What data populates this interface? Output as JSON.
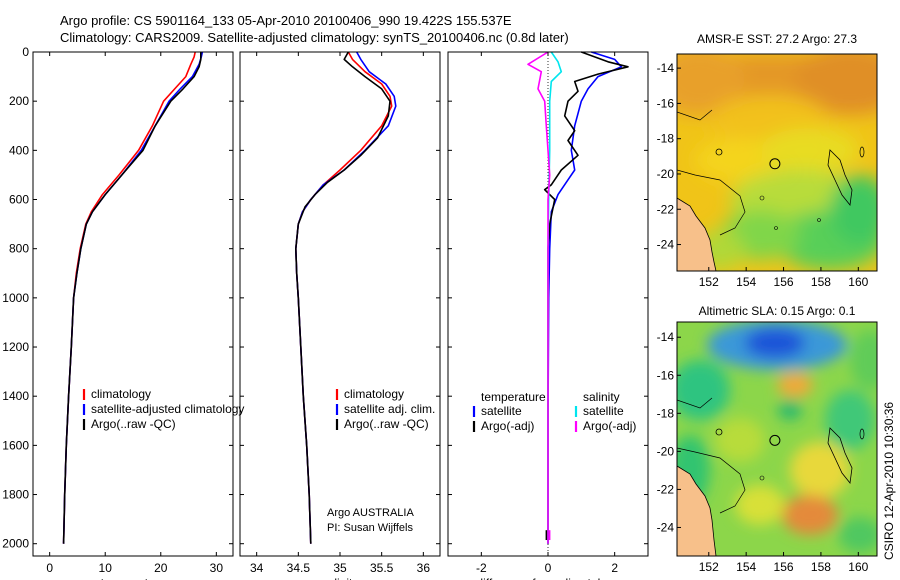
{
  "titles": {
    "line1": "Argo profile: CS 5901164_133 05-Apr-2010 20100406_990 19.422S 155.537E",
    "line2": "Climatology: CARS2009. Satellite-adjusted climatology: synTS_20100406.nc (0.8d later)"
  },
  "colors": {
    "climatology": "#ff0000",
    "satellite": "#0000ff",
    "argo": "#000000",
    "sal_satellite": "#00e5ee",
    "sal_argo": "#ff00ff",
    "land": "#f7c08a"
  },
  "chart_data": [
    {
      "type": "line",
      "id": "temperature",
      "xlabel": "temperature",
      "ylabel": "",
      "xlim": [
        -3,
        33
      ],
      "ylim": [
        2050,
        0
      ],
      "xticks": [
        0,
        10,
        20,
        30
      ],
      "yticks": [
        0,
        200,
        400,
        600,
        800,
        1000,
        1200,
        1400,
        1600,
        1800,
        2000
      ],
      "series": [
        {
          "name": "climatology",
          "color": "#ff0000",
          "points": [
            [
              26.2,
              0
            ],
            [
              26,
              20
            ],
            [
              25.4,
              50
            ],
            [
              24.5,
              100
            ],
            [
              22.5,
              150
            ],
            [
              20.5,
              200
            ],
            [
              18.5,
              300
            ],
            [
              16,
              400
            ],
            [
              12.5,
              500
            ],
            [
              9.5,
              580
            ],
            [
              7.5,
              650
            ],
            [
              6.5,
              700
            ],
            [
              5.5,
              800
            ],
            [
              4.8,
              900
            ],
            [
              4.3,
              1000
            ],
            [
              3.9,
              1200
            ],
            [
              3.4,
              1400
            ],
            [
              3,
              1600
            ],
            [
              2.7,
              1800
            ],
            [
              2.5,
              2000
            ]
          ]
        },
        {
          "name": "satellite-adjusted climatology",
          "color": "#0000ff",
          "points": [
            [
              27.5,
              0
            ],
            [
              27.3,
              20
            ],
            [
              26.9,
              50
            ],
            [
              25.7,
              100
            ],
            [
              23.5,
              150
            ],
            [
              21.5,
              200
            ],
            [
              19,
              300
            ],
            [
              16.5,
              400
            ],
            [
              13,
              500
            ],
            [
              10,
              580
            ],
            [
              7.7,
              650
            ],
            [
              6.6,
              700
            ],
            [
              5.6,
              800
            ],
            [
              4.9,
              900
            ],
            [
              4.3,
              1000
            ],
            [
              3.9,
              1200
            ],
            [
              3.4,
              1400
            ],
            [
              3,
              1600
            ],
            [
              2.7,
              1800
            ],
            [
              2.5,
              2000
            ]
          ]
        },
        {
          "name": "Argo(..raw -QC)",
          "color": "#000000",
          "points": [
            [
              27.2,
              0
            ],
            [
              27.2,
              30
            ],
            [
              26.9,
              60
            ],
            [
              26,
              100
            ],
            [
              24,
              150
            ],
            [
              21.8,
              200
            ],
            [
              19,
              300
            ],
            [
              16.8,
              400
            ],
            [
              13,
              500
            ],
            [
              10,
              580
            ],
            [
              7.7,
              650
            ],
            [
              6.6,
              700
            ],
            [
              5.6,
              800
            ],
            [
              4.9,
              900
            ],
            [
              4.3,
              1000
            ],
            [
              3.9,
              1200
            ],
            [
              3.4,
              1400
            ],
            [
              3,
              1600
            ],
            [
              2.7,
              1800
            ],
            [
              2.5,
              2000
            ]
          ]
        }
      ],
      "legend": [
        "climatology",
        "satellite-adjusted climatology",
        "Argo(..raw -QC)"
      ]
    },
    {
      "type": "line",
      "id": "salinity",
      "xlabel": "salinity",
      "xlim": [
        33.8,
        36.2
      ],
      "ylim": [
        2050,
        0
      ],
      "xticks": [
        34,
        34.5,
        35,
        35.5,
        36
      ],
      "yticks": [
        0,
        200,
        400,
        600,
        800,
        1000,
        1200,
        1400,
        1600,
        1800,
        2000
      ],
      "series": [
        {
          "name": "climatology",
          "color": "#ff0000",
          "points": [
            [
              35.1,
              0
            ],
            [
              35.15,
              30
            ],
            [
              35.3,
              80
            ],
            [
              35.5,
              130
            ],
            [
              35.6,
              180
            ],
            [
              35.62,
              220
            ],
            [
              35.5,
              300
            ],
            [
              35.25,
              400
            ],
            [
              35.0,
              480
            ],
            [
              34.8,
              540
            ],
            [
              34.65,
              600
            ],
            [
              34.55,
              650
            ],
            [
              34.5,
              700
            ],
            [
              34.47,
              800
            ],
            [
              34.48,
              900
            ],
            [
              34.5,
              1000
            ],
            [
              34.53,
              1200
            ],
            [
              34.56,
              1400
            ],
            [
              34.6,
              1600
            ],
            [
              34.63,
              1800
            ],
            [
              34.65,
              2000
            ]
          ]
        },
        {
          "name": "satellite adj. clim.",
          "color": "#0000ff",
          "points": [
            [
              35.2,
              0
            ],
            [
              35.25,
              30
            ],
            [
              35.35,
              80
            ],
            [
              35.55,
              130
            ],
            [
              35.65,
              180
            ],
            [
              35.67,
              220
            ],
            [
              35.58,
              300
            ],
            [
              35.3,
              400
            ],
            [
              35.05,
              480
            ],
            [
              34.8,
              540
            ],
            [
              34.65,
              600
            ],
            [
              34.55,
              650
            ],
            [
              34.5,
              700
            ],
            [
              34.47,
              800
            ],
            [
              34.48,
              900
            ],
            [
              34.5,
              1000
            ],
            [
              34.53,
              1200
            ],
            [
              34.56,
              1400
            ],
            [
              34.6,
              1600
            ],
            [
              34.63,
              1800
            ],
            [
              34.65,
              2000
            ]
          ]
        },
        {
          "name": "Argo(..raw -QC)",
          "color": "#000000",
          "points": [
            [
              35.1,
              0
            ],
            [
              35.05,
              30
            ],
            [
              35.15,
              60
            ],
            [
              35.3,
              100
            ],
            [
              35.5,
              150
            ],
            [
              35.6,
              200
            ],
            [
              35.58,
              260
            ],
            [
              35.45,
              350
            ],
            [
              35.25,
              420
            ],
            [
              35.05,
              480
            ],
            [
              34.85,
              530
            ],
            [
              34.7,
              580
            ],
            [
              34.58,
              630
            ],
            [
              34.5,
              700
            ],
            [
              34.47,
              800
            ],
            [
              34.48,
              900
            ],
            [
              34.5,
              1000
            ],
            [
              34.53,
              1200
            ],
            [
              34.56,
              1400
            ],
            [
              34.6,
              1600
            ],
            [
              34.63,
              1800
            ],
            [
              34.65,
              2000
            ]
          ]
        }
      ],
      "legend": [
        "climatology",
        "satellite adj. clim.",
        "Argo(..raw -QC)"
      ],
      "annotation": [
        "Argo AUSTRALIA",
        "PI: Susan Wijffels"
      ]
    },
    {
      "type": "line",
      "id": "difference",
      "xlabel": "difference from climatology",
      "xlim": [
        -3,
        3
      ],
      "ylim": [
        2050,
        0
      ],
      "xticks": [
        -2,
        0,
        2
      ],
      "yticks": [
        0,
        200,
        400,
        600,
        800,
        1000,
        1200,
        1400,
        1600,
        1800,
        2000
      ],
      "series": [
        {
          "name": "temperature satellite",
          "color": "#0000ff",
          "points": [
            [
              1.3,
              0
            ],
            [
              2.0,
              30
            ],
            [
              2.2,
              60
            ],
            [
              1.5,
              100
            ],
            [
              1.2,
              150
            ],
            [
              1.0,
              200
            ],
            [
              0.8,
              300
            ],
            [
              0.7,
              400
            ],
            [
              0.8,
              480
            ],
            [
              0.6,
              520
            ],
            [
              0.3,
              580
            ],
            [
              0.1,
              650
            ],
            [
              0.05,
              800
            ],
            [
              0.02,
              1000
            ],
            [
              0.0,
              1500
            ],
            [
              0.0,
              2000
            ]
          ]
        },
        {
          "name": "temperature Argo(-adj)",
          "color": "#000000",
          "points": [
            [
              1.0,
              0
            ],
            [
              1.8,
              40
            ],
            [
              2.4,
              60
            ],
            [
              1.5,
              90
            ],
            [
              0.8,
              120
            ],
            [
              0.9,
              160
            ],
            [
              0.6,
              200
            ],
            [
              0.5,
              260
            ],
            [
              0.8,
              320
            ],
            [
              0.6,
              360
            ],
            [
              0.9,
              420
            ],
            [
              0.4,
              480
            ],
            [
              0.1,
              540
            ],
            [
              -0.1,
              560
            ],
            [
              0.2,
              600
            ],
            [
              0.05,
              700
            ],
            [
              0.0,
              800
            ],
            [
              0.0,
              2000
            ]
          ]
        },
        {
          "name": "salinity satellite",
          "color": "#00e5ee",
          "points": [
            [
              0.1,
              0
            ],
            [
              0.3,
              40
            ],
            [
              0.4,
              80
            ],
            [
              0.1,
              120
            ],
            [
              0.05,
              200
            ],
            [
              0.05,
              400
            ],
            [
              0.02,
              600
            ],
            [
              0.0,
              800
            ],
            [
              0.0,
              2000
            ]
          ]
        },
        {
          "name": "salinity Argo(-adj)",
          "color": "#ff00ff",
          "points": [
            [
              0.0,
              0
            ],
            [
              -0.6,
              50
            ],
            [
              -0.2,
              80
            ],
            [
              -0.3,
              150
            ],
            [
              -0.1,
              200
            ],
            [
              -0.05,
              300
            ],
            [
              0.0,
              400
            ],
            [
              0.05,
              500
            ],
            [
              0.0,
              600
            ],
            [
              0.0,
              800
            ],
            [
              0.0,
              2000
            ]
          ]
        }
      ],
      "legend": {
        "col1_header": "temperature",
        "col1_items": [
          "satellite",
          "Argo(-adj)"
        ],
        "col2_header": "salinity",
        "col2_items": [
          "satellite",
          "Argo(-adj)"
        ]
      }
    },
    {
      "type": "heatmap",
      "id": "sst_map",
      "title": "AMSR-E SST: 27.2 Argo: 27.3",
      "xticks": [
        "152",
        "154",
        "156",
        "158",
        "160"
      ],
      "yticks": [
        "-14",
        "-16",
        "-18",
        "-20",
        "-22",
        "-24"
      ],
      "xlim": [
        150.3,
        161
      ],
      "ylim": [
        -25.5,
        -13.2
      ],
      "argo_position": [
        155.537,
        -19.422
      ]
    },
    {
      "type": "heatmap",
      "id": "sla_map",
      "title": "Altimetric SLA: 0.15 Argo: 0.1",
      "xticks": [
        "152",
        "154",
        "156",
        "158",
        "160"
      ],
      "yticks": [
        "-14",
        "-16",
        "-18",
        "-20",
        "-22",
        "-24"
      ],
      "xlim": [
        150.3,
        161
      ],
      "ylim": [
        -25.5,
        -13.2
      ],
      "argo_position": [
        155.537,
        -19.422
      ]
    }
  ],
  "side_label": "CSIRO 12-Apr-2010 10:30:36"
}
